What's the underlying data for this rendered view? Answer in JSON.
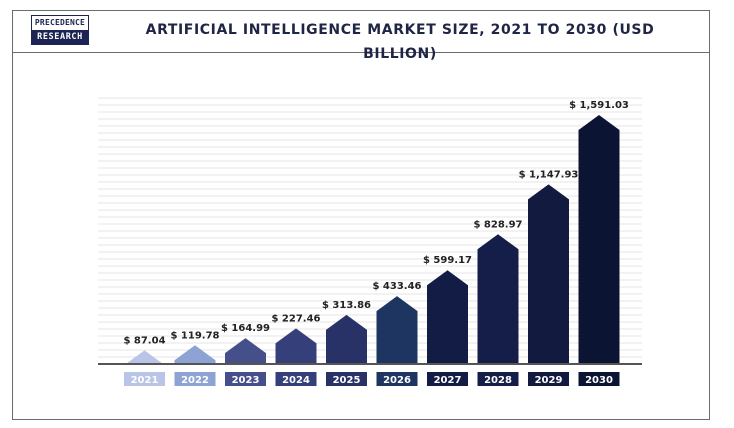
{
  "brand": {
    "line1": "PRECEDENCE",
    "line2": "RESEARCH"
  },
  "chart_data": {
    "type": "bar",
    "title": "ARTIFICIAL INTELLIGENCE MARKET SIZE, 2021 TO 2030 (USD BILLION)",
    "xlabel": "",
    "ylabel": "",
    "ylim": [
      0,
      1700
    ],
    "grid": true,
    "categories": [
      "2021",
      "2022",
      "2023",
      "2024",
      "2025",
      "2026",
      "2027",
      "2028",
      "2029",
      "2030"
    ],
    "values": [
      87.04,
      119.78,
      164.99,
      227.46,
      313.86,
      433.46,
      599.17,
      828.97,
      1147.93,
      1591.03
    ],
    "value_labels": [
      "$ 87.04",
      "$ 119.78",
      "$ 164.99",
      "$ 227.46",
      "$ 313.86",
      "$ 433.46",
      "$ 599.17",
      "$ 828.97",
      "$ 1,147.93",
      "$ 1,591.03"
    ],
    "colors": [
      "#b9c4e6",
      "#8da3d4",
      "#454f8a",
      "#35407a",
      "#293267",
      "#1d3560",
      "#131c45",
      "#141e48",
      "#121a40",
      "#0b1433"
    ]
  }
}
